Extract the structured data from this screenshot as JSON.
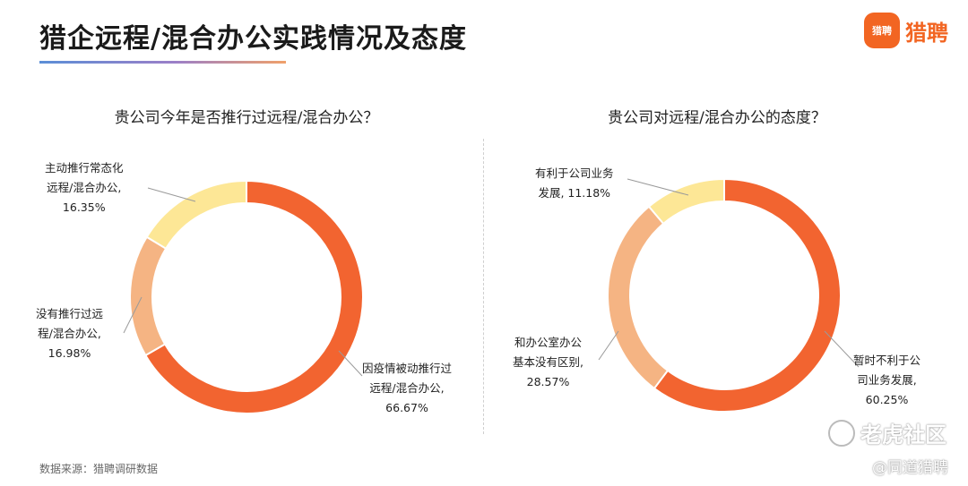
{
  "header": {
    "title": "猎企远程/混合办公实践情况及态度",
    "brand_logo_text": "猎聘",
    "brand_name": "猎聘"
  },
  "source": "数据来源：猎聘调研数据",
  "watermark": {
    "main": "老虎社区",
    "sub": "@同道猎聘"
  },
  "colors": {
    "dark": "#f26430",
    "light": "#f5b483",
    "pale": "#fde796"
  },
  "chart_data": [
    {
      "type": "pie",
      "donut": true,
      "title": "贵公司今年是否推行过远程/混合办公？",
      "slices": [
        {
          "label_lines": [
            "因疫情被动推行过",
            "远程/混合办公,",
            "66.67%"
          ],
          "value": 66.67,
          "color": "#f26430"
        },
        {
          "label_lines": [
            "没有推行过远",
            "程/混合办公,",
            "16.98%"
          ],
          "value": 16.98,
          "color": "#f5b483"
        },
        {
          "label_lines": [
            "主动推行常态化",
            "远程/混合办公,",
            "16.35%"
          ],
          "value": 16.35,
          "color": "#fde796"
        }
      ]
    },
    {
      "type": "pie",
      "donut": true,
      "title": "贵公司对远程/混合办公的态度？",
      "slices": [
        {
          "label_lines": [
            "暂时不利于公",
            "司业务发展,",
            "60.25%"
          ],
          "value": 60.25,
          "color": "#f26430"
        },
        {
          "label_lines": [
            "和办公室办公",
            "基本没有区别,",
            "28.57%"
          ],
          "value": 28.57,
          "color": "#f5b483"
        },
        {
          "label_lines": [
            "有利于公司业务",
            "发展, 11.18%"
          ],
          "value": 11.18,
          "color": "#fde796"
        }
      ]
    }
  ]
}
